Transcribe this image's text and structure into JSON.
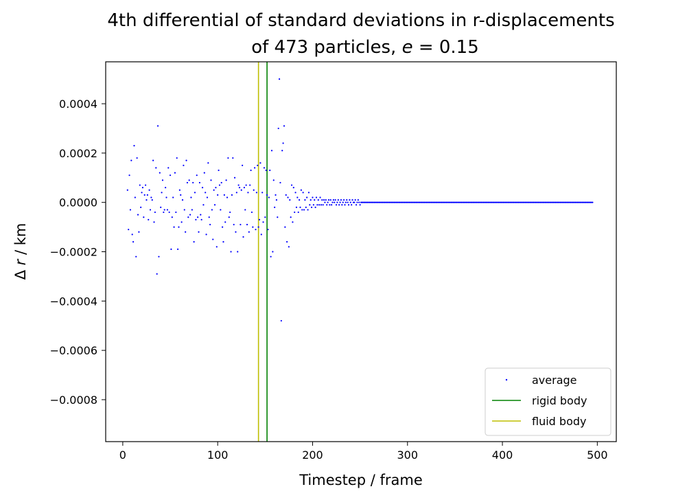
{
  "chart_data": {
    "type": "scatter",
    "title_line1": "4th differential of standard deviations in r-displacements",
    "title_line2_prefix": "of 473 particles, ",
    "title_e_symbol": "e",
    "title_e_value": " = 0.15",
    "xlabel": "Timestep / frame",
    "ylabel_prefix": "Δ ",
    "ylabel_var": "r",
    "ylabel_suffix": " / km",
    "xlim": [
      -18,
      520
    ],
    "ylim": [
      -0.00097,
      0.00057
    ],
    "xticks": [
      0,
      100,
      200,
      300,
      400,
      500
    ],
    "xtick_labels": [
      "0",
      "100",
      "200",
      "300",
      "400",
      "500"
    ],
    "yticks": [
      0.0004,
      0.0002,
      0.0,
      -0.0002,
      -0.0004,
      -0.0006,
      -0.0008
    ],
    "ytick_labels": [
      "0.0004",
      "0.0002",
      "0.0000",
      "−0.0002",
      "−0.0004",
      "−0.0006",
      "−0.0008"
    ],
    "legend_position": "lower-right",
    "grid": false,
    "series": [
      {
        "name": "average",
        "kind": "points",
        "color": "#0000ff",
        "x_start": 5,
        "x_step": 1,
        "y": [
          5e-05,
          -0.00011,
          0.00011,
          -3e-05,
          0.00017,
          -0.00013,
          -0.00016,
          0.00023,
          2e-05,
          -0.00022,
          0.00018,
          -5e-05,
          -0.00012,
          7e-05,
          -2e-05,
          4e-05,
          6e-05,
          -6e-05,
          3e-05,
          7e-05,
          1e-05,
          3e-05,
          -7e-05,
          5e-05,
          -3e-05,
          2e-05,
          1e-05,
          0.00017,
          -8e-05,
          -4e-05,
          0.00014,
          -0.00029,
          0.00031,
          -0.00022,
          0.00012,
          -2e-05,
          4e-05,
          9e-05,
          -4e-05,
          -3e-05,
          6e-05,
          2e-05,
          -3e-05,
          0.00014,
          -4e-05,
          0.00011,
          -0.00019,
          -6e-05,
          2e-05,
          -0.0001,
          0.00012,
          -4e-05,
          0.00018,
          -0.00019,
          -0.0001,
          5e-05,
          3e-05,
          -8e-05,
          1e-05,
          0.00015,
          -3e-05,
          -0.00012,
          0.00017,
          8e-05,
          -6e-05,
          9e-05,
          -5e-05,
          2e-05,
          -3e-05,
          8e-05,
          -0.00016,
          4e-05,
          -7e-05,
          0.00011,
          -6e-05,
          -0.00012,
          8e-05,
          -5e-05,
          -7e-05,
          6e-05,
          -1e-05,
          0.00012,
          4e-05,
          -0.00013,
          2e-05,
          0.00016,
          -6e-05,
          -9e-05,
          9e-05,
          -3e-05,
          -0.00015,
          5e-05,
          -1e-05,
          6e-05,
          -0.00018,
          3e-05,
          0.00013,
          7e-05,
          -3e-05,
          8e-05,
          -0.0001,
          -0.00016,
          3e-05,
          -8e-05,
          9e-05,
          2e-05,
          0.00018,
          -6e-05,
          -4e-05,
          -0.0002,
          3e-05,
          0.00018,
          -9e-05,
          0.0001,
          -0.00012,
          4e-05,
          -0.0002,
          7e-05,
          6e-05,
          -9e-05,
          5e-05,
          0.00015,
          -0.00014,
          6e-05,
          -3e-05,
          7e-05,
          -9e-05,
          4e-05,
          -0.00012,
          7e-05,
          0.00013,
          -4e-05,
          -0.0001,
          5e-05,
          0.00014,
          -0.00011,
          4e-05,
          0.00015,
          -0.0001,
          -7e-05,
          0.00016,
          -0.00013,
          4e-05,
          -8e-05,
          0.00014,
          -6e-05,
          0.00013,
          3e-05,
          -0.00011,
          2e-05,
          0.00013,
          -0.00022,
          0.00021,
          -0.0002,
          9e-05,
          -2e-05,
          3e-05,
          1e-05,
          -6e-05,
          0.0003,
          0.0005,
          8e-05,
          -0.00048,
          0.00021,
          0.00024,
          0.00031,
          -0.0001,
          3e-05,
          -0.00016,
          2e-05,
          -0.00018,
          1e-05,
          -6e-05,
          7e-05,
          -8e-05,
          6e-05,
          -4e-05,
          4e-05,
          -2e-05,
          2e-05,
          -4e-05,
          1e-05,
          -2e-05,
          5e-05,
          -3e-05,
          4e-05,
          -3e-05,
          1e-05,
          -2e-05,
          2e-05,
          -3e-05,
          4e-05,
          -1e-05,
          1e-05,
          -2e-05,
          2e-05,
          -1e-05,
          1e-05,
          -2e-05,
          2e-05,
          -1e-05,
          1e-05,
          -1e-05,
          2e-05,
          -1e-05,
          1e-05,
          -1e-05,
          1e-05,
          0.0,
          1e-05,
          -1e-05,
          0.0,
          1e-05,
          -1e-05,
          1e-05,
          -1e-05,
          0.0,
          1e-05,
          0.0,
          1e-05,
          -1e-05,
          0.0,
          1e-05,
          -1e-05,
          0.0,
          1e-05,
          -1e-05,
          0.0,
          1e-05,
          -1e-05,
          0.0,
          1e-05,
          0.0,
          -1e-05,
          1e-05,
          0.0,
          -1e-05,
          1e-05,
          0.0,
          0.0,
          1e-05,
          -1e-05,
          0.0,
          1e-05,
          0.0,
          -1e-05
        ],
        "tail_value": 0.0,
        "x_end": 495
      },
      {
        "name": "rigid body",
        "kind": "vline",
        "x": 152,
        "color": "#008000"
      },
      {
        "name": "fluid body",
        "kind": "vline",
        "x": 143,
        "color": "#bfbf00"
      }
    ]
  }
}
